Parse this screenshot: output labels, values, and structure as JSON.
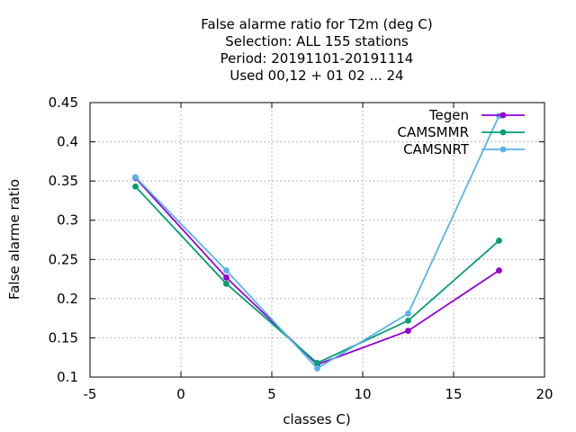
{
  "chart_data": {
    "type": "line",
    "title_lines": [
      "False alarme ratio  for T2m (deg C)",
      "Selection: ALL    155 stations",
      "Period: 20191101-20191114",
      "Used  00,12  + 01 02 ... 24"
    ],
    "xlabel": "classes C)",
    "ylabel": "False alarme ratio",
    "xlim": [
      -5,
      20
    ],
    "ylim": [
      0.1,
      0.45
    ],
    "x_ticks": [
      -5,
      0,
      5,
      10,
      15,
      20
    ],
    "y_ticks": [
      0.1,
      0.15,
      0.2,
      0.25,
      0.3,
      0.35,
      0.4,
      0.45
    ],
    "y_tick_labels": [
      "0.1",
      "0.15",
      "0.2",
      "0.25",
      "0.3",
      "0.35",
      "0.4",
      "0.45"
    ],
    "grid": true,
    "legend_position": "top-right",
    "series": [
      {
        "name": "Tegen",
        "color": "#9400d3",
        "x": [
          -2.5,
          2.5,
          7.5,
          12.5,
          17.5
        ],
        "y": [
          0.354,
          0.227,
          0.116,
          0.159,
          0.236
        ]
      },
      {
        "name": "CAMSMMR",
        "color": "#009e73",
        "x": [
          -2.5,
          2.5,
          7.5,
          12.5,
          17.5
        ],
        "y": [
          0.343,
          0.219,
          0.118,
          0.172,
          0.274
        ]
      },
      {
        "name": "CAMSNRT",
        "color": "#56b4e9",
        "x": [
          -2.5,
          2.5,
          7.5,
          12.5,
          17.5
        ],
        "y": [
          0.355,
          0.236,
          0.111,
          0.181,
          0.433
        ]
      }
    ]
  }
}
